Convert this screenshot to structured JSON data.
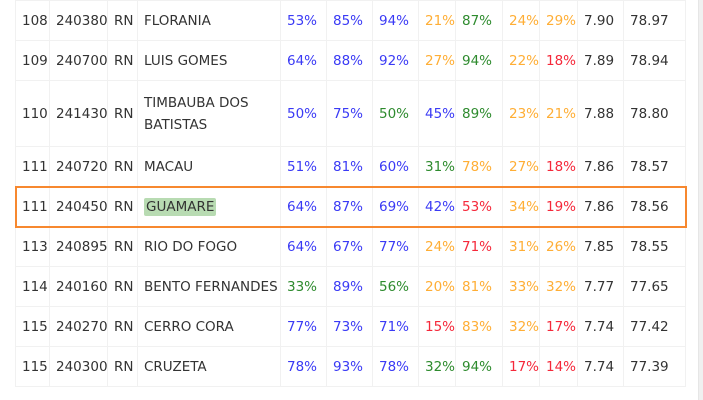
{
  "colors": {
    "blue": "#3a3af5",
    "green": "#2e8b2e",
    "orange": "#ffae35",
    "red": "#f5283a",
    "highlight_border": "#f7882f",
    "highlight_fill": "#b8dbb2"
  },
  "highlighted_row": 4,
  "rows": [
    {
      "rank": "108",
      "code": "240380",
      "uf": "RN",
      "name": "FLORANIA",
      "p": [
        [
          "53%",
          "b"
        ],
        [
          "85%",
          "b"
        ],
        [
          "94%",
          "b"
        ],
        [
          "21%",
          "o"
        ],
        [
          "87%",
          "g"
        ],
        [
          "24%",
          "o"
        ],
        [
          "29%",
          "o"
        ]
      ],
      "score": "7.90",
      "total": "78.97"
    },
    {
      "rank": "109",
      "code": "240700",
      "uf": "RN",
      "name": "LUIS GOMES",
      "p": [
        [
          "64%",
          "b"
        ],
        [
          "88%",
          "b"
        ],
        [
          "92%",
          "b"
        ],
        [
          "27%",
          "o"
        ],
        [
          "94%",
          "g"
        ],
        [
          "22%",
          "o"
        ],
        [
          "18%",
          "r"
        ]
      ],
      "score": "7.89",
      "total": "78.94"
    },
    {
      "rank": "110",
      "code": "241430",
      "uf": "RN",
      "name": "TIMBAUBA DOS BATISTAS",
      "p": [
        [
          "50%",
          "b"
        ],
        [
          "75%",
          "b"
        ],
        [
          "50%",
          "g"
        ],
        [
          "45%",
          "b"
        ],
        [
          "89%",
          "g"
        ],
        [
          "23%",
          "o"
        ],
        [
          "21%",
          "o"
        ]
      ],
      "score": "7.88",
      "total": "78.80"
    },
    {
      "rank": "111",
      "code": "240720",
      "uf": "RN",
      "name": "MACAU",
      "p": [
        [
          "51%",
          "b"
        ],
        [
          "81%",
          "b"
        ],
        [
          "60%",
          "b"
        ],
        [
          "31%",
          "g"
        ],
        [
          "78%",
          "o"
        ],
        [
          "27%",
          "o"
        ],
        [
          "18%",
          "r"
        ]
      ],
      "score": "7.86",
      "total": "78.57"
    },
    {
      "rank": "111",
      "code": "240450",
      "uf": "RN",
      "name": "GUAMARE",
      "p": [
        [
          "64%",
          "b"
        ],
        [
          "87%",
          "b"
        ],
        [
          "69%",
          "b"
        ],
        [
          "42%",
          "b"
        ],
        [
          "53%",
          "r"
        ],
        [
          "34%",
          "o"
        ],
        [
          "19%",
          "r"
        ]
      ],
      "score": "7.86",
      "total": "78.56"
    },
    {
      "rank": "113",
      "code": "240895",
      "uf": "RN",
      "name": "RIO DO FOGO",
      "p": [
        [
          "64%",
          "b"
        ],
        [
          "67%",
          "b"
        ],
        [
          "77%",
          "b"
        ],
        [
          "24%",
          "o"
        ],
        [
          "71%",
          "r"
        ],
        [
          "31%",
          "o"
        ],
        [
          "26%",
          "o"
        ]
      ],
      "score": "7.85",
      "total": "78.55"
    },
    {
      "rank": "114",
      "code": "240160",
      "uf": "RN",
      "name": "BENTO FERNANDES",
      "p": [
        [
          "33%",
          "g"
        ],
        [
          "89%",
          "b"
        ],
        [
          "56%",
          "g"
        ],
        [
          "20%",
          "o"
        ],
        [
          "81%",
          "o"
        ],
        [
          "33%",
          "o"
        ],
        [
          "32%",
          "o"
        ]
      ],
      "score": "7.77",
      "total": "77.65"
    },
    {
      "rank": "115",
      "code": "240270",
      "uf": "RN",
      "name": "CERRO CORA",
      "p": [
        [
          "77%",
          "b"
        ],
        [
          "73%",
          "b"
        ],
        [
          "71%",
          "b"
        ],
        [
          "15%",
          "r"
        ],
        [
          "83%",
          "o"
        ],
        [
          "32%",
          "o"
        ],
        [
          "17%",
          "r"
        ]
      ],
      "score": "7.74",
      "total": "77.42"
    },
    {
      "rank": "115",
      "code": "240300",
      "uf": "RN",
      "name": "CRUZETA",
      "p": [
        [
          "78%",
          "b"
        ],
        [
          "93%",
          "b"
        ],
        [
          "78%",
          "b"
        ],
        [
          "32%",
          "g"
        ],
        [
          "94%",
          "g"
        ],
        [
          "17%",
          "r"
        ],
        [
          "14%",
          "r"
        ]
      ],
      "score": "7.74",
      "total": "77.39"
    }
  ]
}
